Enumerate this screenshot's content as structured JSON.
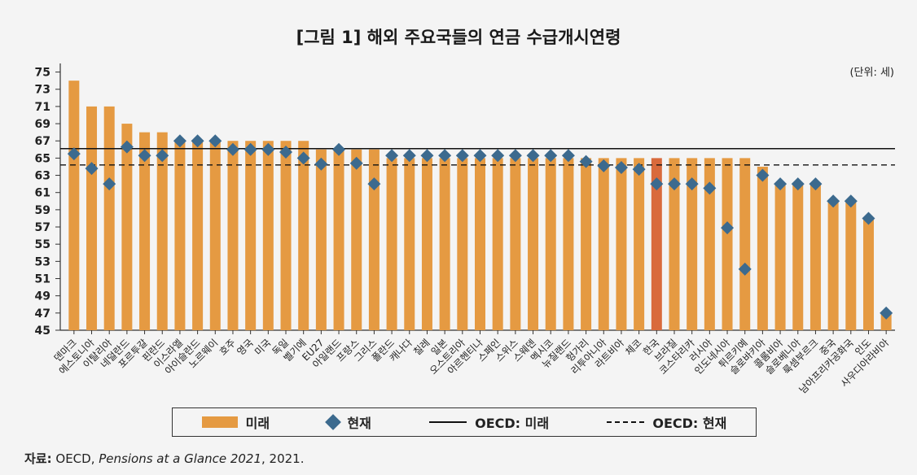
{
  "title": "[그림 1] 해외 주요국들의 연금 수급개시연령",
  "unit_label": "(단위: 세)",
  "source": {
    "label": "자료:",
    "org": "OECD, ",
    "pub": "Pensions at a Glance 2021",
    "year": ", 2021."
  },
  "legend": {
    "future": "미래",
    "current": "현재",
    "oecd_future": "OECD: 미래",
    "oecd_current": "OECD: 현재"
  },
  "colors": {
    "bar": "#e59a42",
    "highlight": "#d96a3c",
    "diamond": "#3c6a8e"
  },
  "chart_data": {
    "type": "bar",
    "title": "[그림 1] 해외 주요국들의 연금 수급개시연령",
    "ylim": [
      45,
      76
    ],
    "yticks": [
      45,
      47,
      49,
      51,
      53,
      55,
      57,
      59,
      61,
      63,
      65,
      67,
      69,
      71,
      73,
      75
    ],
    "highlight_category": "한국",
    "categories": [
      "덴마크",
      "에스토니아",
      "이탈리아",
      "네덜란드",
      "포르투갈",
      "핀란드",
      "이스라엘",
      "아이슬란드",
      "노르웨이",
      "호주",
      "영국",
      "미국",
      "독일",
      "벨기에",
      "EU27",
      "아일랜드",
      "프랑스",
      "그리스",
      "폴란드",
      "캐나다",
      "칠레",
      "일본",
      "오스트리아",
      "아르헨티나",
      "스페인",
      "스위스",
      "스웨덴",
      "멕시코",
      "뉴질랜드",
      "헝가리",
      "리투아니아",
      "라트비아",
      "체코",
      "한국",
      "브라질",
      "코스타리카",
      "러시아",
      "인도네시아",
      "튀르키예",
      "슬로바키아",
      "콜롬비아",
      "슬로베니아",
      "룩셈부르크",
      "중국",
      "남아프리카공화국",
      "인도",
      "사우디아라비아"
    ],
    "series": [
      {
        "name": "미래",
        "values": [
          74,
          71,
          71,
          69,
          68,
          68,
          67,
          67,
          67,
          67,
          67,
          67,
          67,
          67,
          66,
          66,
          66,
          66,
          65,
          65,
          65,
          65,
          65,
          65,
          65,
          65,
          65,
          65,
          65,
          65,
          65,
          65,
          65,
          65,
          65,
          65,
          65,
          65,
          65,
          64,
          62,
          62,
          62,
          60,
          60,
          58,
          47
        ]
      },
      {
        "name": "현재",
        "values": [
          65.5,
          63.8,
          62,
          66.3,
          65.3,
          65.3,
          67,
          67,
          67,
          66,
          66,
          66,
          65.7,
          65,
          64.3,
          66,
          64.4,
          62,
          65.3,
          65.3,
          65.3,
          65.3,
          65.3,
          65.3,
          65.3,
          65.3,
          65.3,
          65.3,
          65.3,
          64.6,
          64.1,
          63.9,
          63.7,
          62,
          62,
          62,
          61.5,
          56.9,
          52.1,
          63,
          62,
          62,
          62,
          60,
          60,
          58,
          47
        ]
      }
    ],
    "reference_lines": [
      {
        "name": "OECD: 미래",
        "value": 66.1,
        "style": "solid"
      },
      {
        "name": "OECD: 현재",
        "value": 64.2,
        "style": "dashed"
      }
    ]
  }
}
